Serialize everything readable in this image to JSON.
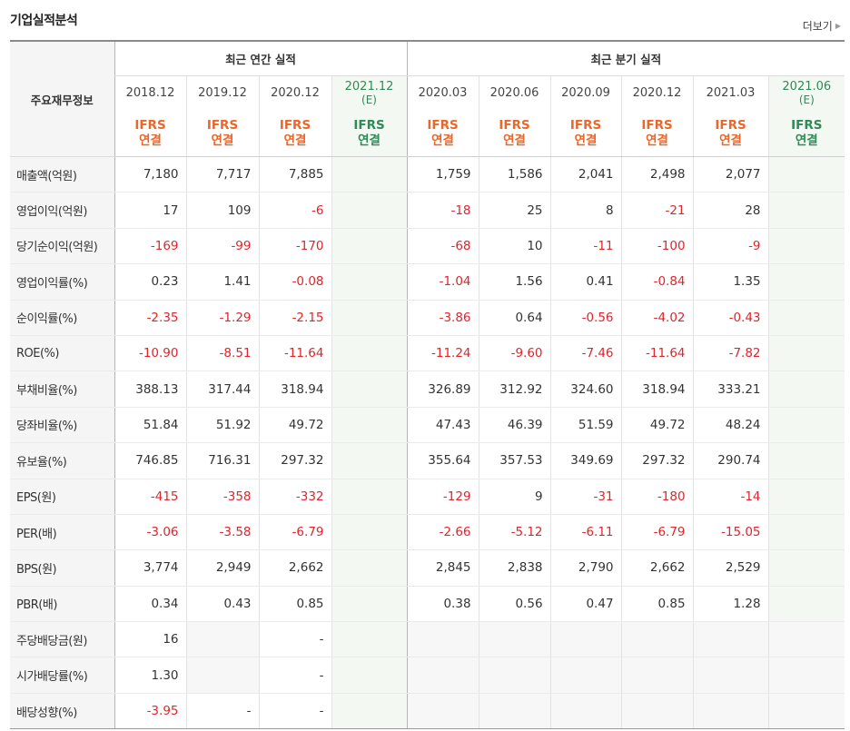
{
  "header": {
    "title": "기업실적분석",
    "more_label": "더보기"
  },
  "table": {
    "corner_label": "주요재무정보",
    "annual_group_label": "최근 연간 실적",
    "quarter_group_label": "최근 분기 실적",
    "annual_periods": [
      {
        "period": "2018.12",
        "estimate": "",
        "basis": "IFRS",
        "scope": "연결"
      },
      {
        "period": "2019.12",
        "estimate": "",
        "basis": "IFRS",
        "scope": "연결"
      },
      {
        "period": "2020.12",
        "estimate": "",
        "basis": "IFRS",
        "scope": "연결"
      },
      {
        "period": "2021.12",
        "estimate": "(E)",
        "basis": "IFRS",
        "scope": "연결"
      }
    ],
    "quarter_periods": [
      {
        "period": "2020.03",
        "estimate": "",
        "basis": "IFRS",
        "scope": "연결"
      },
      {
        "period": "2020.06",
        "estimate": "",
        "basis": "IFRS",
        "scope": "연결"
      },
      {
        "period": "2020.09",
        "estimate": "",
        "basis": "IFRS",
        "scope": "연결"
      },
      {
        "period": "2020.12",
        "estimate": "",
        "basis": "IFRS",
        "scope": "연결"
      },
      {
        "period": "2021.03",
        "estimate": "",
        "basis": "IFRS",
        "scope": "연결"
      },
      {
        "period": "2021.06",
        "estimate": "(E)",
        "basis": "IFRS",
        "scope": "연결"
      }
    ],
    "rows": [
      {
        "label": "매출액(억원)",
        "annual": [
          "7,180",
          "7,717",
          "7,885",
          ""
        ],
        "quarter": [
          "1,759",
          "1,586",
          "2,041",
          "2,498",
          "2,077",
          ""
        ]
      },
      {
        "label": "영업이익(억원)",
        "annual": [
          "17",
          "109",
          "-6",
          ""
        ],
        "quarter": [
          "-18",
          "25",
          "8",
          "-21",
          "28",
          ""
        ]
      },
      {
        "label": "당기순이익(억원)",
        "annual": [
          "-169",
          "-99",
          "-170",
          ""
        ],
        "quarter": [
          "-68",
          "10",
          "-11",
          "-100",
          "-9",
          ""
        ]
      },
      {
        "label": "영업이익률(%)",
        "annual": [
          "0.23",
          "1.41",
          "-0.08",
          ""
        ],
        "quarter": [
          "-1.04",
          "1.56",
          "0.41",
          "-0.84",
          "1.35",
          ""
        ]
      },
      {
        "label": "순이익률(%)",
        "annual": [
          "-2.35",
          "-1.29",
          "-2.15",
          ""
        ],
        "quarter": [
          "-3.86",
          "0.64",
          "-0.56",
          "-4.02",
          "-0.43",
          ""
        ]
      },
      {
        "label": "ROE(%)",
        "annual": [
          "-10.90",
          "-8.51",
          "-11.64",
          ""
        ],
        "quarter": [
          "-11.24",
          "-9.60",
          "-7.46",
          "-11.64",
          "-7.82",
          ""
        ]
      },
      {
        "label": "부채비율(%)",
        "annual": [
          "388.13",
          "317.44",
          "318.94",
          ""
        ],
        "quarter": [
          "326.89",
          "312.92",
          "324.60",
          "318.94",
          "333.21",
          ""
        ]
      },
      {
        "label": "당좌비율(%)",
        "annual": [
          "51.84",
          "51.92",
          "49.72",
          ""
        ],
        "quarter": [
          "47.43",
          "46.39",
          "51.59",
          "49.72",
          "48.24",
          ""
        ]
      },
      {
        "label": "유보율(%)",
        "annual": [
          "746.85",
          "716.31",
          "297.32",
          ""
        ],
        "quarter": [
          "355.64",
          "357.53",
          "349.69",
          "297.32",
          "290.74",
          ""
        ]
      },
      {
        "label": "EPS(원)",
        "annual": [
          "-415",
          "-358",
          "-332",
          ""
        ],
        "quarter": [
          "-129",
          "9",
          "-31",
          "-180",
          "-14",
          ""
        ]
      },
      {
        "label": "PER(배)",
        "annual": [
          "-3.06",
          "-3.58",
          "-6.79",
          ""
        ],
        "quarter": [
          "-2.66",
          "-5.12",
          "-6.11",
          "-6.79",
          "-15.05",
          ""
        ]
      },
      {
        "label": "BPS(원)",
        "annual": [
          "3,774",
          "2,949",
          "2,662",
          ""
        ],
        "quarter": [
          "2,845",
          "2,838",
          "2,790",
          "2,662",
          "2,529",
          ""
        ]
      },
      {
        "label": "PBR(배)",
        "annual": [
          "0.34",
          "0.43",
          "0.85",
          ""
        ],
        "quarter": [
          "0.38",
          "0.56",
          "0.47",
          "0.85",
          "1.28",
          ""
        ]
      },
      {
        "label": "주당배당금(원)",
        "annual": [
          "16",
          "",
          "-",
          ""
        ],
        "quarter": [
          "",
          "",
          "",
          "",
          "",
          ""
        ]
      },
      {
        "label": "시가배당률(%)",
        "annual": [
          "1.30",
          "",
          "-",
          ""
        ],
        "quarter": [
          "",
          "",
          "",
          "",
          "",
          ""
        ]
      },
      {
        "label": "배당성향(%)",
        "annual": [
          "-3.95",
          "-",
          "-",
          ""
        ],
        "quarter": [
          "",
          "",
          "",
          "",
          "",
          ""
        ]
      }
    ]
  },
  "colors": {
    "negative": "#e0242b",
    "ifrs": "#e9672a",
    "estimate": "#2e8b57"
  }
}
